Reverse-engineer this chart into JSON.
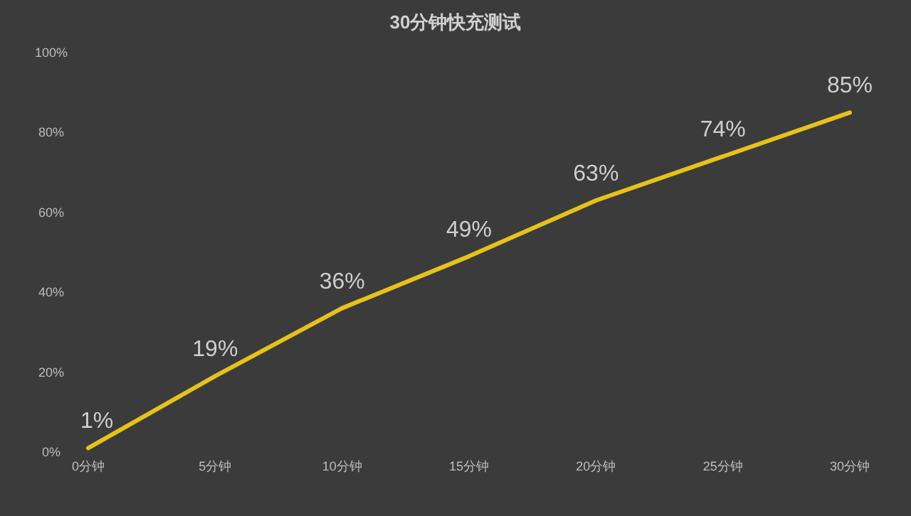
{
  "chart_data": {
    "type": "line",
    "title": "30分钟快充测试",
    "categories": [
      "0分钟",
      "5分钟",
      "10分钟",
      "15分钟",
      "20分钟",
      "25分钟",
      "30分钟"
    ],
    "values": [
      1,
      19,
      36,
      49,
      63,
      74,
      85
    ],
    "value_labels": [
      "1%",
      "19%",
      "36%",
      "49%",
      "63%",
      "74%",
      "85%"
    ],
    "color": "#e6c21c",
    "ylim": [
      0,
      100
    ],
    "yticks": [
      {
        "value": 0,
        "label": "0%"
      },
      {
        "value": 20,
        "label": "20%"
      },
      {
        "value": 40,
        "label": "40%"
      },
      {
        "value": 60,
        "label": "60%"
      },
      {
        "value": 80,
        "label": "80%"
      },
      {
        "value": 100,
        "label": "100%"
      }
    ],
    "grid": false,
    "marker": "none",
    "line_style": "solid"
  }
}
